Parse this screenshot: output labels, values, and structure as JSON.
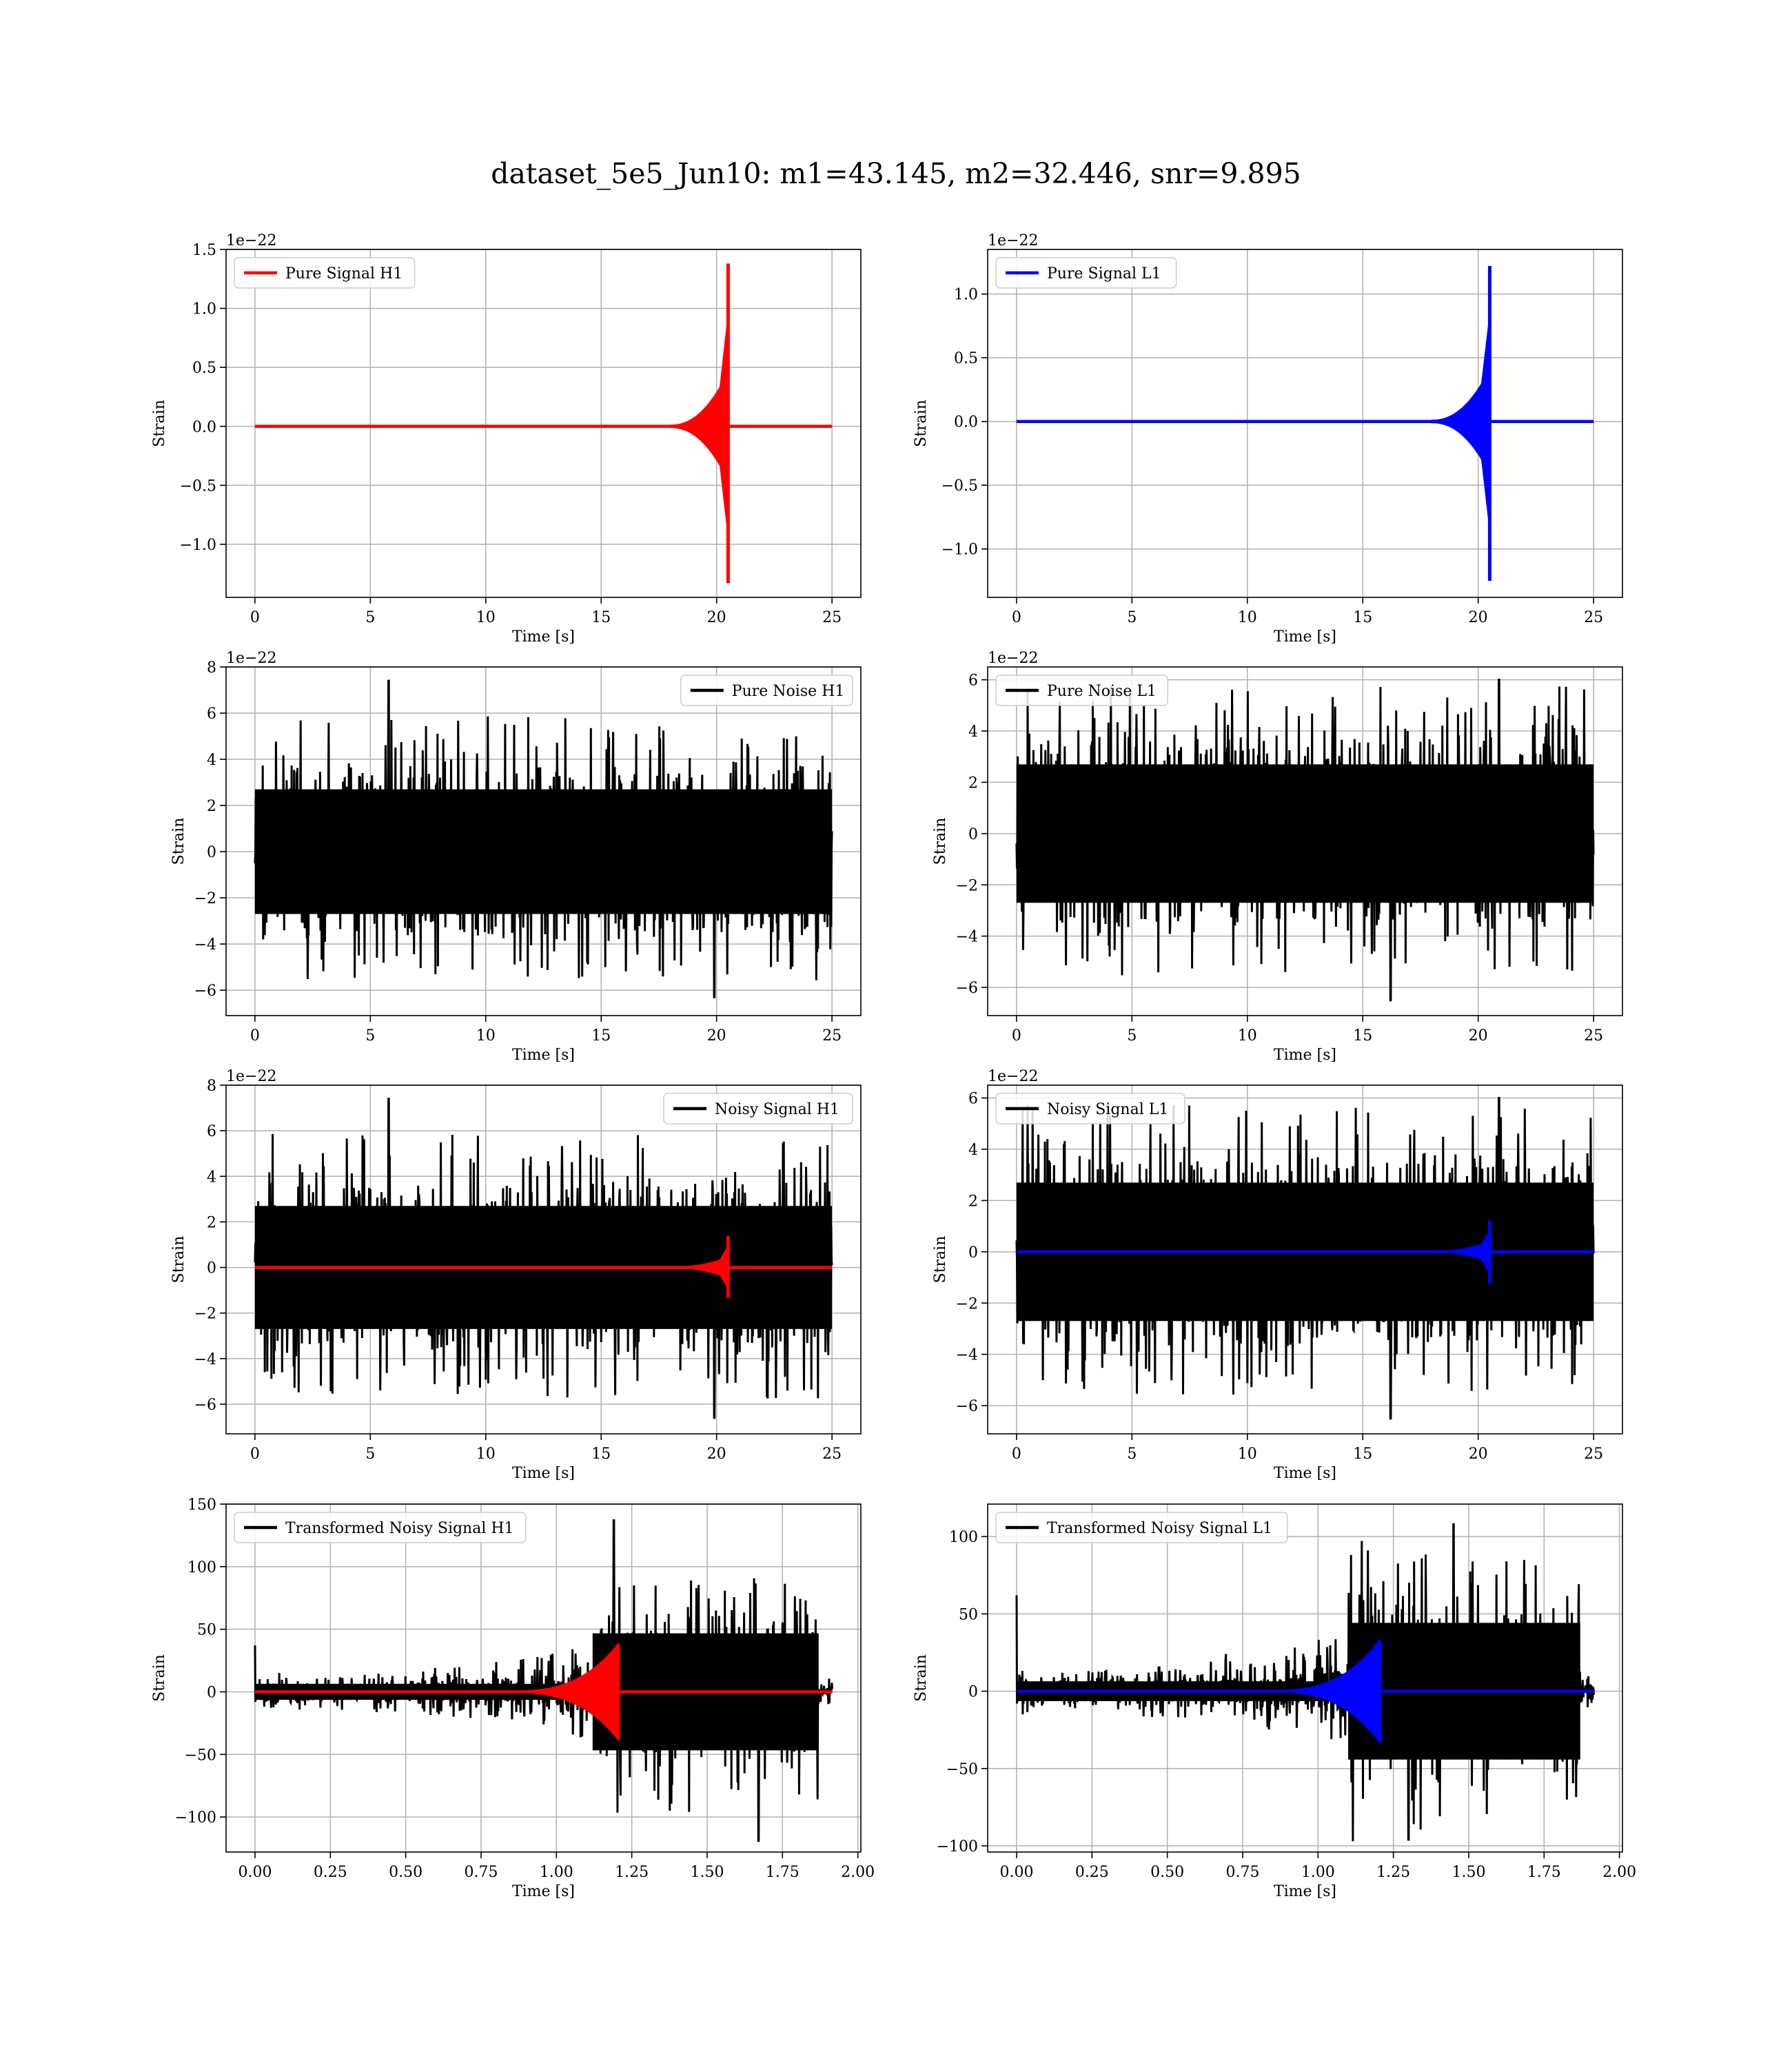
{
  "figure": {
    "title": "dataset_5e5_Jun10: m1=43.145, m2=32.446, snr=9.895"
  },
  "colors": {
    "h1_signal": "#ff0000",
    "l1_signal": "#0000ff",
    "noise": "#000000",
    "grid": "#b0b0b0"
  },
  "chart_data": [
    {
      "type": "line",
      "legend": "Pure Signal H1",
      "legend_position": "upper-left",
      "xlabel": "Time [s]",
      "ylabel": "Strain",
      "offset_text": "1e−22",
      "xlim": [
        -1.25,
        26.25
      ],
      "ylim": [
        -1.45,
        1.5
      ],
      "xticks": [
        0,
        5,
        10,
        15,
        20,
        25
      ],
      "xtick_labels": [
        "0",
        "5",
        "10",
        "15",
        "20",
        "25"
      ],
      "yticks": [
        -1.0,
        -0.5,
        0.0,
        0.5,
        1.0,
        1.5
      ],
      "ytick_labels": [
        "−1.0",
        "−0.5",
        "0.0",
        "0.5",
        "1.0",
        "1.5"
      ],
      "grid": true,
      "series": [
        {
          "kind": "chirp",
          "color": "#ff0000",
          "x_start": 0,
          "x_end": 25,
          "t_merger": 20.5,
          "peak_max": 1.38,
          "peak_min": -1.33,
          "band_onset": 18.0,
          "band_amp": 0.45,
          "t_ringdown": 20.6
        }
      ]
    },
    {
      "type": "line",
      "legend": "Pure Signal L1",
      "legend_position": "upper-left",
      "xlabel": "Time [s]",
      "ylabel": "Strain",
      "offset_text": "1e−22",
      "xlim": [
        -1.25,
        26.25
      ],
      "ylim": [
        -1.38,
        1.35
      ],
      "xticks": [
        0,
        5,
        10,
        15,
        20,
        25
      ],
      "xtick_labels": [
        "0",
        "5",
        "10",
        "15",
        "20",
        "25"
      ],
      "yticks": [
        -1.0,
        -0.5,
        0.0,
        0.5,
        1.0
      ],
      "ytick_labels": [
        "−1.0",
        "−0.5",
        "0.0",
        "0.5",
        "1.0"
      ],
      "grid": true,
      "series": [
        {
          "kind": "chirp",
          "color": "#0000ff",
          "x_start": 0,
          "x_end": 25,
          "t_merger": 20.5,
          "peak_max": 1.22,
          "peak_min": -1.25,
          "band_onset": 18.0,
          "band_amp": 0.4,
          "t_ringdown": 20.6
        }
      ]
    },
    {
      "type": "line",
      "legend": "Pure Noise H1",
      "legend_position": "upper-right",
      "xlabel": "Time [s]",
      "ylabel": "Strain",
      "offset_text": "1e−22",
      "xlim": [
        -1.25,
        26.25
      ],
      "ylim": [
        -7.1,
        8.0
      ],
      "xticks": [
        0,
        5,
        10,
        15,
        20,
        25
      ],
      "xtick_labels": [
        "0",
        "5",
        "10",
        "15",
        "20",
        "25"
      ],
      "yticks": [
        -6,
        -4,
        -2,
        0,
        2,
        4,
        6,
        8
      ],
      "ytick_labels": [
        "−6",
        "−4",
        "−2",
        "0",
        "2",
        "4",
        "6",
        "8"
      ],
      "grid": true,
      "series": [
        {
          "kind": "noise",
          "color": "#000000",
          "x_start": 0,
          "x_end": 25,
          "core_amp": 3.0,
          "spike_max": 5.9,
          "spike_min": -5.8,
          "global_max": 7.4,
          "global_max_x": 5.8,
          "global_min": -6.3,
          "global_min_x": 19.9
        }
      ]
    },
    {
      "type": "line",
      "legend": "Pure Noise L1",
      "legend_position": "upper-left",
      "xlabel": "Time [s]",
      "ylabel": "Strain",
      "offset_text": "1e−22",
      "xlim": [
        -1.25,
        26.25
      ],
      "ylim": [
        -7.1,
        6.5
      ],
      "xticks": [
        0,
        5,
        10,
        15,
        20,
        25
      ],
      "xtick_labels": [
        "0",
        "5",
        "10",
        "15",
        "20",
        "25"
      ],
      "yticks": [
        -6,
        -4,
        -2,
        0,
        2,
        4,
        6
      ],
      "ytick_labels": [
        "−6",
        "−4",
        "−2",
        "0",
        "2",
        "4",
        "6"
      ],
      "grid": true,
      "series": [
        {
          "kind": "noise",
          "color": "#000000",
          "x_start": 0,
          "x_end": 25,
          "core_amp": 3.0,
          "spike_max": 5.8,
          "spike_min": -5.6,
          "global_max": 6.0,
          "global_max_x": 20.9,
          "global_min": -6.5,
          "global_min_x": 16.2
        }
      ]
    },
    {
      "type": "line",
      "legend": "Noisy Signal H1",
      "legend_position": "upper-right",
      "xlabel": "Time [s]",
      "ylabel": "Strain",
      "offset_text": "1e−22",
      "xlim": [
        -1.25,
        26.25
      ],
      "ylim": [
        -7.3,
        8.0
      ],
      "xticks": [
        0,
        5,
        10,
        15,
        20,
        25
      ],
      "xtick_labels": [
        "0",
        "5",
        "10",
        "15",
        "20",
        "25"
      ],
      "yticks": [
        -6,
        -4,
        -2,
        0,
        2,
        4,
        6,
        8
      ],
      "ytick_labels": [
        "−6",
        "−4",
        "−2",
        "0",
        "2",
        "4",
        "6",
        "8"
      ],
      "grid": true,
      "series": [
        {
          "kind": "noise",
          "color": "#000000",
          "x_start": 0,
          "x_end": 25,
          "core_amp": 3.0,
          "spike_max": 5.9,
          "spike_min": -5.8,
          "global_max": 7.4,
          "global_max_x": 5.8,
          "global_min": -6.6,
          "global_min_x": 19.9
        },
        {
          "kind": "chirp",
          "color": "#ff0000",
          "x_start": 0,
          "x_end": 25,
          "t_merger": 20.5,
          "peak_max": 1.38,
          "peak_min": -1.33,
          "band_onset": 18.0,
          "band_amp": 0.45,
          "t_ringdown": 20.6
        }
      ]
    },
    {
      "type": "line",
      "legend": "Noisy Signal L1",
      "legend_position": "upper-left",
      "xlabel": "Time [s]",
      "ylabel": "Strain",
      "offset_text": "1e−22",
      "xlim": [
        -1.25,
        26.25
      ],
      "ylim": [
        -7.1,
        6.5
      ],
      "xticks": [
        0,
        5,
        10,
        15,
        20,
        25
      ],
      "xtick_labels": [
        "0",
        "5",
        "10",
        "15",
        "20",
        "25"
      ],
      "yticks": [
        -6,
        -4,
        -2,
        0,
        2,
        4,
        6
      ],
      "ytick_labels": [
        "−6",
        "−4",
        "−2",
        "0",
        "2",
        "4",
        "6"
      ],
      "grid": true,
      "series": [
        {
          "kind": "noise",
          "color": "#000000",
          "x_start": 0,
          "x_end": 25,
          "core_amp": 3.0,
          "spike_max": 5.8,
          "spike_min": -5.6,
          "global_max": 6.0,
          "global_max_x": 20.9,
          "global_min": -6.5,
          "global_min_x": 16.2
        },
        {
          "kind": "chirp",
          "color": "#0000ff",
          "x_start": 0,
          "x_end": 25,
          "t_merger": 20.5,
          "peak_max": 1.22,
          "peak_min": -1.25,
          "band_onset": 18.0,
          "band_amp": 0.4,
          "t_ringdown": 20.6
        }
      ]
    },
    {
      "type": "line",
      "legend": "Transformed Noisy Signal H1",
      "legend_position": "upper-left",
      "xlabel": "Time [s]",
      "ylabel": "Strain",
      "offset_text": "",
      "xlim": [
        -0.096,
        2.01
      ],
      "ylim": [
        -128,
        150
      ],
      "xticks": [
        0,
        0.25,
        0.5,
        0.75,
        1.0,
        1.25,
        1.5,
        1.75,
        2.0
      ],
      "xtick_labels": [
        "0.00",
        "0.25",
        "0.50",
        "0.75",
        "1.00",
        "1.25",
        "1.50",
        "1.75",
        "2.00"
      ],
      "yticks": [
        -100,
        -50,
        0,
        50,
        100,
        150
      ],
      "ytick_labels": [
        "−100",
        "−50",
        "0",
        "50",
        "100",
        "150"
      ],
      "grid": true,
      "series": [
        {
          "kind": "transformed_noise",
          "color": "#000000",
          "x_start": 0,
          "x_end": 1.915,
          "x_jump": 1.12,
          "x_drop": 1.87,
          "pre_amp": 8,
          "post_amp": 55,
          "global_max": 137,
          "global_max_x": 1.19,
          "global_min": -119,
          "global_min_x": 1.67,
          "start_spike": 37
        },
        {
          "kind": "transformed_chirp",
          "color": "#ff0000",
          "x_start": 0,
          "x_end": 1.915,
          "t_merger": 1.205,
          "peak_max": 38,
          "peak_min": -38
        }
      ]
    },
    {
      "type": "line",
      "legend": "Transformed Noisy Signal L1",
      "legend_position": "upper-left",
      "xlabel": "Time [s]",
      "ylabel": "Strain",
      "offset_text": "",
      "xlim": [
        -0.096,
        2.01
      ],
      "ylim": [
        -104,
        121
      ],
      "xticks": [
        0,
        0.25,
        0.5,
        0.75,
        1.0,
        1.25,
        1.5,
        1.75,
        2.0
      ],
      "xtick_labels": [
        "0.00",
        "0.25",
        "0.50",
        "0.75",
        "1.00",
        "1.25",
        "1.50",
        "1.75",
        "2.00"
      ],
      "yticks": [
        -100,
        -50,
        0,
        50,
        100
      ],
      "ytick_labels": [
        "−100",
        "−50",
        "0",
        "50",
        "100"
      ],
      "grid": true,
      "series": [
        {
          "kind": "transformed_noise",
          "color": "#000000",
          "x_start": 0,
          "x_end": 1.915,
          "x_jump": 1.1,
          "x_drop": 1.87,
          "pre_amp": 8,
          "post_amp": 52,
          "global_max": 108,
          "global_max_x": 1.45,
          "global_min": -96,
          "global_min_x": 1.3,
          "start_spike": 62
        },
        {
          "kind": "transformed_chirp",
          "color": "#0000ff",
          "x_start": 0,
          "x_end": 1.915,
          "t_merger": 1.205,
          "peak_max": 33,
          "peak_min": -33
        }
      ]
    }
  ]
}
